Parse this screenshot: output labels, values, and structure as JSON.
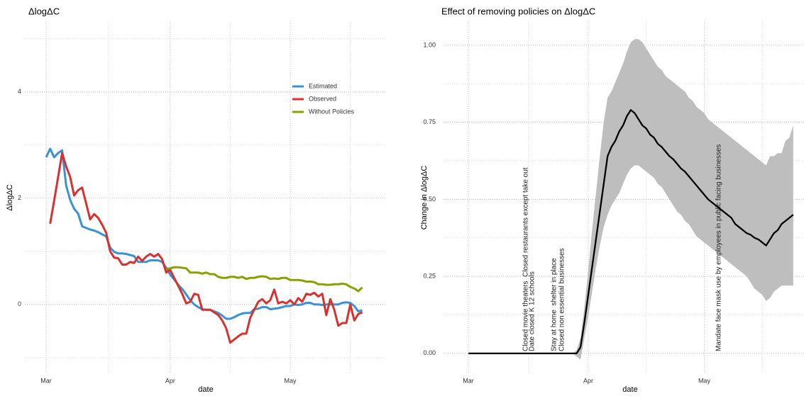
{
  "chart_data": [
    {
      "type": "line",
      "subtitle": "ΔlogΔC",
      "x_label": "date",
      "y_label": "ΔlogΔC",
      "categories": [
        "Mar",
        null,
        null,
        null,
        null,
        null,
        null,
        null,
        null,
        null,
        null,
        null,
        null,
        null,
        null,
        null,
        null,
        null,
        null,
        null,
        null,
        null,
        null,
        null,
        null,
        null,
        null,
        null,
        null,
        null,
        null,
        "Apr",
        null,
        null,
        null,
        null,
        null,
        null,
        null,
        null,
        null,
        null,
        null,
        null,
        null,
        null,
        null,
        null,
        null,
        null,
        null,
        null,
        null,
        null,
        null,
        null,
        null,
        null,
        null,
        null,
        null,
        "May",
        null,
        null,
        null,
        null,
        null,
        null,
        null,
        null,
        null,
        null,
        null,
        null,
        null,
        null,
        null,
        null,
        null,
        null
      ],
      "series": [
        {
          "name": "Estimated",
          "color": "#3a92d2",
          "values": [
            2.77,
            2.93,
            2.77,
            2.85,
            2.9,
            2.24,
            1.97,
            1.8,
            1.71,
            1.47,
            1.44,
            1.41,
            1.39,
            1.36,
            1.32,
            1.28,
            1.07,
            0.99,
            0.96,
            0.96,
            0.95,
            0.93,
            0.91,
            0.8,
            0.8,
            0.8,
            0.83,
            0.83,
            0.83,
            0.8,
            0.69,
            0.56,
            0.47,
            0.37,
            0.29,
            0.19,
            0.08,
            0,
            -0.05,
            -0.09,
            -0.1,
            -0.1,
            -0.13,
            -0.16,
            -0.21,
            -0.27,
            -0.27,
            -0.24,
            -0.2,
            -0.17,
            -0.16,
            -0.16,
            -0.09,
            -0.08,
            -0.05,
            -0.05,
            -0.09,
            -0.08,
            -0.07,
            -0.05,
            -0.03,
            -0.03,
            0,
            -0.01,
            0,
            0.03,
            0.03,
            0,
            0,
            -0.01,
            0,
            0,
            0,
            0,
            0.03,
            0.04,
            0.03,
            -0.03,
            -0.13,
            -0.11
          ]
        },
        {
          "name": "Observed",
          "color": "#d73230",
          "values": [
            null,
            1.52,
            1.95,
            2.4,
            2.85,
            2.6,
            2.4,
            2.05,
            2.15,
            2.2,
            1.9,
            1.6,
            1.7,
            1.63,
            1.5,
            1.35,
            1.0,
            0.88,
            0.87,
            0.75,
            0.75,
            0.8,
            0.78,
            0.9,
            0.82,
            0.9,
            0.95,
            0.9,
            0.95,
            0.85,
            0.6,
            0.65,
            0.5,
            0.35,
            0.2,
            0.02,
            0.05,
            0.2,
            0.18,
            -0.1,
            -0.1,
            -0.1,
            -0.15,
            -0.2,
            -0.3,
            -0.45,
            -0.72,
            -0.66,
            -0.6,
            -0.55,
            -0.55,
            -0.25,
            -0.1,
            0.05,
            0.1,
            0.02,
            0.08,
            0.28,
            0.02,
            0.05,
            0.02,
            0.08,
            0,
            0.12,
            0.05,
            0.2,
            0.18,
            0.22,
            0.15,
            0.2,
            -0.2,
            0.1,
            -0.1,
            -0.4,
            -0.35,
            -0.35,
            0,
            -0.3,
            -0.18,
            -0.15
          ]
        },
        {
          "name": "Without Policies",
          "color": "#8ba000",
          "values": [
            null,
            null,
            null,
            null,
            null,
            null,
            null,
            null,
            null,
            null,
            null,
            null,
            null,
            null,
            null,
            null,
            null,
            null,
            null,
            null,
            null,
            null,
            null,
            null,
            null,
            null,
            null,
            null,
            null,
            null,
            0.67,
            0.68,
            0.7,
            0.7,
            0.69,
            0.68,
            0.6,
            0.6,
            0.6,
            0.58,
            0.6,
            0.57,
            0.57,
            0.52,
            0.5,
            0.5,
            0.52,
            0.52,
            0.5,
            0.52,
            0.48,
            0.5,
            0.5,
            0.52,
            0.53,
            0.52,
            0.48,
            0.49,
            0.48,
            0.5,
            0.5,
            0.46,
            0.46,
            0.46,
            0.45,
            0.43,
            0.43,
            0.42,
            0.38,
            0.38,
            0.37,
            0.37,
            0.38,
            0.38,
            0.39,
            0.38,
            0.33,
            0.3,
            0.25,
            0.32
          ]
        }
      ],
      "ylim": [
        -1.31,
        5.33
      ],
      "yticks": [
        0,
        2,
        4
      ],
      "grid": true,
      "legend": "top-right"
    },
    {
      "type": "line",
      "title": "Effect of removing policies on ΔlogΔC",
      "x_label": "date",
      "y_label": "Change in ΔlogΔC",
      "categories": [
        "Mar",
        null,
        null,
        null,
        null,
        null,
        null,
        null,
        null,
        null,
        null,
        null,
        null,
        null,
        null,
        null,
        null,
        null,
        null,
        null,
        null,
        null,
        null,
        null,
        null,
        null,
        null,
        null,
        null,
        null,
        null,
        "Apr",
        null,
        null,
        null,
        null,
        null,
        null,
        null,
        null,
        null,
        null,
        null,
        null,
        null,
        null,
        null,
        null,
        null,
        null,
        null,
        null,
        null,
        null,
        null,
        null,
        null,
        null,
        null,
        null,
        null,
        "May",
        null,
        null,
        null,
        null,
        null,
        null,
        null,
        null,
        null,
        null,
        null,
        null,
        null,
        null,
        null,
        null,
        null,
        null,
        null,
        null,
        null,
        null,
        null
      ],
      "values": [
        0,
        0,
        0,
        0,
        0,
        0,
        0,
        0,
        0,
        0,
        0,
        0,
        0,
        0,
        0,
        0,
        0,
        0,
        0,
        0,
        0,
        0,
        0,
        0,
        0,
        0,
        0,
        0,
        0,
        0.02,
        0.1,
        0.19,
        0.28,
        0.37,
        0.46,
        0.55,
        0.64,
        0.67,
        0.69,
        0.72,
        0.74,
        0.77,
        0.79,
        0.78,
        0.76,
        0.74,
        0.73,
        0.71,
        0.7,
        0.68,
        0.67,
        0.655,
        0.64,
        0.63,
        0.615,
        0.6,
        0.59,
        0.575,
        0.56,
        0.545,
        0.53,
        0.515,
        0.5,
        0.49,
        0.48,
        0.47,
        0.46,
        0.45,
        0.44,
        0.42,
        0.41,
        0.4,
        0.39,
        0.385,
        0.375,
        0.37,
        0.36,
        0.35,
        0.37,
        0.39,
        0.4,
        0.42,
        0.43,
        0.44,
        0.45
      ],
      "lower": [
        0,
        0,
        0,
        0,
        0,
        0,
        0,
        0,
        0,
        0,
        0,
        0,
        0,
        0,
        0,
        0,
        0,
        0,
        0,
        0,
        0,
        0,
        0,
        0,
        0,
        0,
        0,
        0,
        -0.01,
        -0.02,
        0.05,
        0.12,
        0.2,
        0.28,
        0.35,
        0.41,
        0.45,
        0.48,
        0.5,
        0.52,
        0.55,
        0.58,
        0.6,
        0.61,
        0.61,
        0.6,
        0.59,
        0.58,
        0.57,
        0.55,
        0.54,
        0.52,
        0.5,
        0.48,
        0.46,
        0.45,
        0.43,
        0.42,
        0.4,
        0.38,
        0.37,
        0.36,
        0.35,
        0.34,
        0.33,
        0.32,
        0.31,
        0.3,
        0.29,
        0.28,
        0.27,
        0.26,
        0.25,
        0.23,
        0.21,
        0.2,
        0.19,
        0.17,
        0.18,
        0.2,
        0.21,
        0.22,
        0.22,
        0.22,
        0.22
      ],
      "upper": [
        0,
        0,
        0,
        0,
        0,
        0,
        0,
        0,
        0,
        0,
        0,
        0,
        0,
        0,
        0,
        0,
        0,
        0,
        0,
        0,
        0,
        0,
        0,
        0,
        0,
        0,
        0,
        0,
        0.01,
        0.05,
        0.15,
        0.27,
        0.4,
        0.52,
        0.64,
        0.75,
        0.83,
        0.85,
        0.88,
        0.91,
        0.94,
        0.98,
        1.01,
        1.02,
        1.02,
        1.01,
        0.99,
        0.97,
        0.95,
        0.93,
        0.92,
        0.9,
        0.89,
        0.88,
        0.87,
        0.86,
        0.85,
        0.83,
        0.82,
        0.8,
        0.79,
        0.78,
        0.76,
        0.75,
        0.74,
        0.73,
        0.72,
        0.71,
        0.7,
        0.69,
        0.68,
        0.67,
        0.66,
        0.65,
        0.64,
        0.63,
        0.62,
        0.61,
        0.64,
        0.64,
        0.65,
        0.65,
        0.69,
        0.7,
        0.74
      ],
      "color": "#000000",
      "band_color": "#bebebe",
      "ylim": [
        -0.067,
        1.078
      ],
      "yticks": [
        {
          "value": 0,
          "label": "0.00"
        },
        {
          "value": 0.25,
          "label": "0.25"
        },
        {
          "value": 0.5,
          "label": "0.50"
        },
        {
          "value": 0.75,
          "label": "0.75"
        },
        {
          "value": 1,
          "label": "1.00"
        }
      ],
      "grid": true,
      "annotations": [
        "Closed movie theaters  Closed restaurants except take out",
        "Date closed K 12 schools",
        "Stay at home  shelter in place",
        "Closed non essential businesses",
        "Mandate face mask use by employees in public facing businesses"
      ]
    }
  ]
}
